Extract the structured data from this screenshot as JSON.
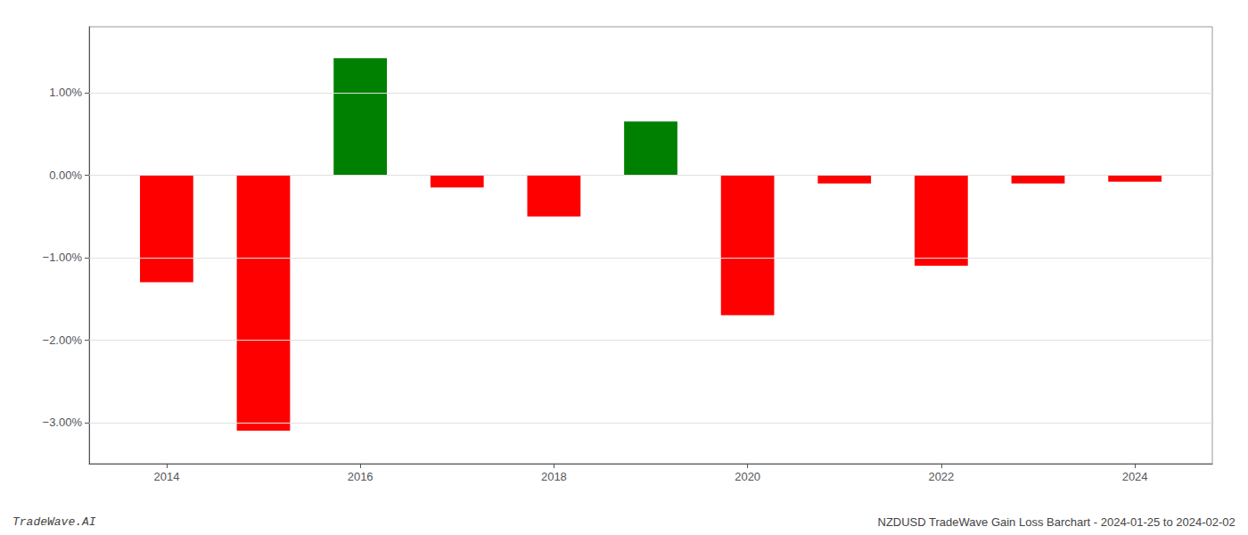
{
  "chart_data": {
    "type": "bar",
    "x": [
      2014,
      2015,
      2016,
      2017,
      2018,
      2019,
      2020,
      2021,
      2022,
      2023,
      2024
    ],
    "values": [
      -1.3,
      -3.1,
      1.42,
      -0.15,
      -0.5,
      0.65,
      -1.7,
      -0.1,
      -1.1,
      -0.1,
      -0.08
    ],
    "colors": [
      "#ff0000",
      "#ff0000",
      "#008000",
      "#ff0000",
      "#ff0000",
      "#008000",
      "#ff0000",
      "#ff0000",
      "#ff0000",
      "#ff0000",
      "#ff0000"
    ],
    "xlim": [
      2013.2,
      2024.8
    ],
    "xticks": [
      2014,
      2016,
      2018,
      2020,
      2022,
      2024
    ],
    "ylim": [
      -3.5,
      1.8
    ],
    "yticks": [
      {
        "value": -3.0,
        "label": "−3.00%"
      },
      {
        "value": -2.0,
        "label": "−2.00%"
      },
      {
        "value": -1.0,
        "label": "−1.00%"
      },
      {
        "value": 0.0,
        "label": "0.00%"
      },
      {
        "value": 1.0,
        "label": "1.00%"
      }
    ],
    "grid": true,
    "annotations": [
      "TradeWave.AI",
      "NZDUSD TradeWave Gain Loss Barchart - 2024-01-25 to 2024-02-02"
    ]
  }
}
